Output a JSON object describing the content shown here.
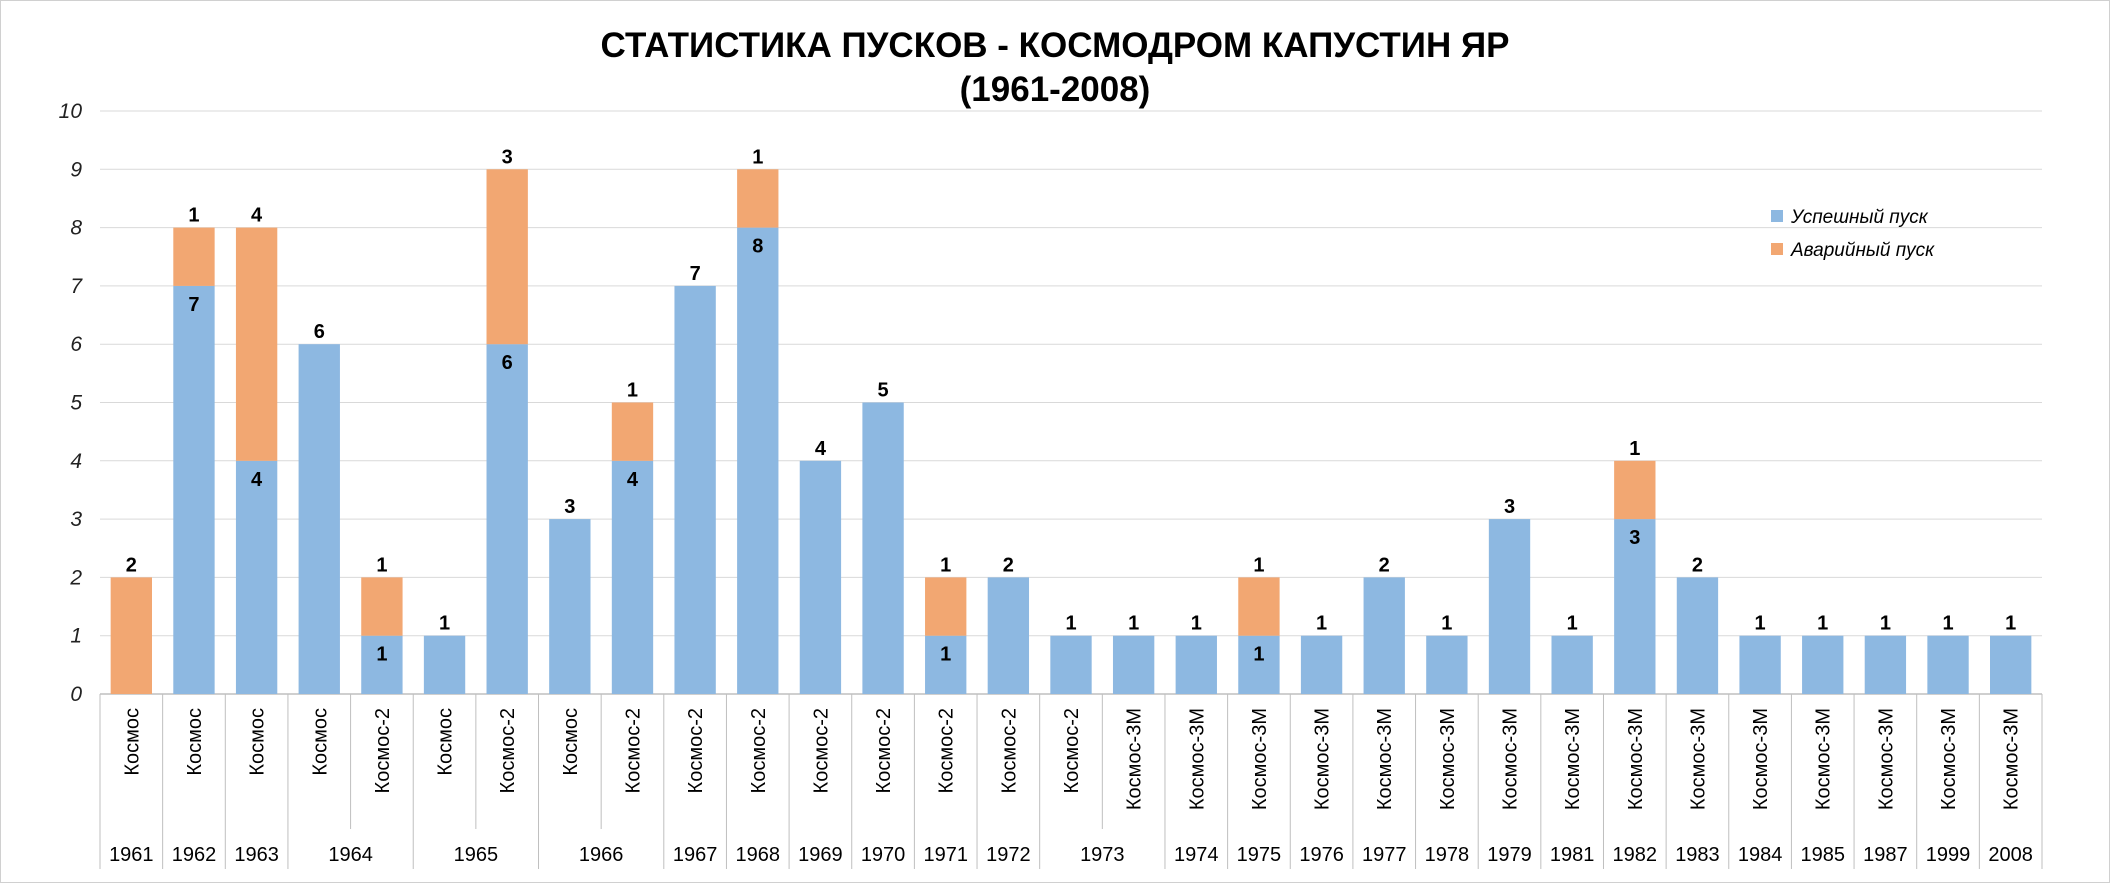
{
  "chart_data": {
    "type": "bar",
    "stacked": true,
    "title": "СТАТИСТИКА ПУСКОВ - КОСМОДРОМ КАПУСТИН ЯР",
    "subtitle": "(1961-2008)",
    "ylim": [
      0,
      10
    ],
    "yticks": [
      0,
      1,
      2,
      3,
      4,
      5,
      6,
      7,
      8,
      9,
      10
    ],
    "grid": true,
    "legend_position": "top-right",
    "categories": [
      "Космос",
      "Космос",
      "Космос",
      "Космос",
      "Космос-2",
      "Космос",
      "Космос-2",
      "Космос",
      "Космос-2",
      "Космос-2",
      "Космос-2",
      "Космос-2",
      "Космос-2",
      "Космос-2",
      "Космос-2",
      "Космос-2",
      "Космос-3М",
      "Космос-3М",
      "Космос-3М",
      "Космос-3М",
      "Космос-3М",
      "Космос-3М",
      "Космос-3М",
      "Космос-3М",
      "Космос-3М",
      "Космос-3М",
      "Космос-3М",
      "Космос-3М",
      "Космос-3М",
      "Космос-3М",
      "Космос-3М"
    ],
    "year_groups": [
      {
        "label": "1961",
        "count": 1
      },
      {
        "label": "1962",
        "count": 1
      },
      {
        "label": "1963",
        "count": 1
      },
      {
        "label": "1964",
        "count": 2
      },
      {
        "label": "1965",
        "count": 2
      },
      {
        "label": "1966",
        "count": 2
      },
      {
        "label": "1967",
        "count": 1
      },
      {
        "label": "1968",
        "count": 1
      },
      {
        "label": "1969",
        "count": 1
      },
      {
        "label": "1970",
        "count": 1
      },
      {
        "label": "1971",
        "count": 1
      },
      {
        "label": "1972",
        "count": 1
      },
      {
        "label": "1973",
        "count": 2
      },
      {
        "label": "1974",
        "count": 1
      },
      {
        "label": "1975",
        "count": 1
      },
      {
        "label": "1976",
        "count": 1
      },
      {
        "label": "1977",
        "count": 1
      },
      {
        "label": "1978",
        "count": 1
      },
      {
        "label": "1979",
        "count": 1
      },
      {
        "label": "1981",
        "count": 1
      },
      {
        "label": "1982",
        "count": 1
      },
      {
        "label": "1983",
        "count": 1
      },
      {
        "label": "1984",
        "count": 1
      },
      {
        "label": "1985",
        "count": 1
      },
      {
        "label": "1987",
        "count": 1
      },
      {
        "label": "1999",
        "count": 1
      },
      {
        "label": "2008",
        "count": 1
      }
    ],
    "series": [
      {
        "name": "Успешный пуск",
        "color": "#8DB8E1",
        "values": [
          0,
          7,
          4,
          6,
          1,
          1,
          6,
          3,
          4,
          7,
          8,
          4,
          5,
          1,
          2,
          1,
          1,
          1,
          1,
          1,
          2,
          1,
          3,
          1,
          3,
          2,
          1,
          1,
          1,
          1,
          1
        ]
      },
      {
        "name": "Аварийный пуск",
        "color": "#F2A772",
        "values": [
          2,
          1,
          4,
          0,
          1,
          0,
          3,
          0,
          1,
          0,
          1,
          0,
          0,
          1,
          0,
          0,
          0,
          0,
          1,
          0,
          0,
          0,
          0,
          0,
          1,
          0,
          0,
          0,
          0,
          0,
          0
        ]
      }
    ]
  }
}
